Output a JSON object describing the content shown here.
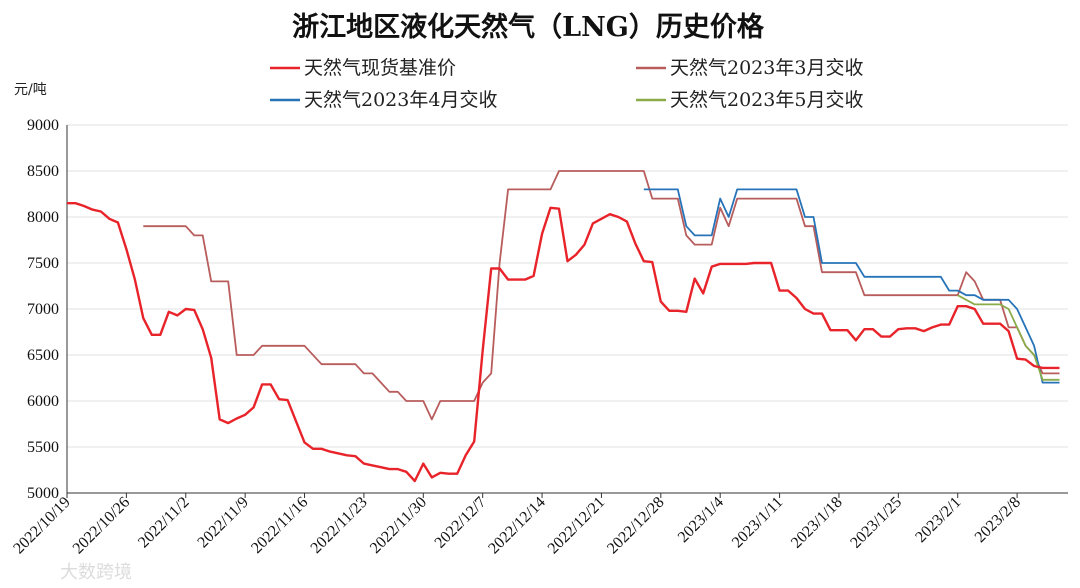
{
  "chart_data": {
    "type": "line",
    "title": "浙江地区液化天然气（LNG）历史价格",
    "ylabel": "元/吨",
    "xlabel": "",
    "ylim": [
      5000,
      9000
    ],
    "yticks": [
      5000,
      5500,
      6000,
      6500,
      7000,
      7500,
      8000,
      8500,
      9000
    ],
    "x_range": [
      "2022/10/19",
      "2023/2/14"
    ],
    "xticks": [
      "2022/10/19",
      "2022/10/26",
      "2022/11/2",
      "2022/11/9",
      "2022/11/16",
      "2022/11/23",
      "2022/11/30",
      "2022/12/7",
      "2022/12/14",
      "2022/12/21",
      "2022/12/28",
      "2023/1/4",
      "2023/1/11",
      "2023/1/18",
      "2023/1/25",
      "2023/2/1",
      "2023/2/8"
    ],
    "grid": "horizontal",
    "legend_position": "top",
    "series": [
      {
        "name": "天然气现货基准价",
        "color": "#e8232a",
        "points": [
          [
            "2022/10/19",
            8150
          ],
          [
            "2022/10/20",
            8150
          ],
          [
            "2022/10/21",
            8120
          ],
          [
            "2022/10/22",
            8080
          ],
          [
            "2022/10/23",
            8060
          ],
          [
            "2022/10/24",
            7980
          ],
          [
            "2022/10/25",
            7940
          ],
          [
            "2022/10/26",
            7650
          ],
          [
            "2022/10/27",
            7320
          ],
          [
            "2022/10/28",
            6900
          ],
          [
            "2022/10/29",
            6720
          ],
          [
            "2022/10/30",
            6720
          ],
          [
            "2022/10/31",
            6970
          ],
          [
            "2022/11/1",
            6930
          ],
          [
            "2022/11/2",
            7000
          ],
          [
            "2022/11/3",
            6990
          ],
          [
            "2022/11/4",
            6780
          ],
          [
            "2022/11/5",
            6470
          ],
          [
            "2022/11/6",
            5800
          ],
          [
            "2022/11/7",
            5760
          ],
          [
            "2022/11/8",
            5810
          ],
          [
            "2022/11/9",
            5850
          ],
          [
            "2022/11/10",
            5930
          ],
          [
            "2022/11/11",
            6180
          ],
          [
            "2022/11/12",
            6180
          ],
          [
            "2022/11/13",
            6020
          ],
          [
            "2022/11/14",
            6010
          ],
          [
            "2022/11/15",
            5780
          ],
          [
            "2022/11/16",
            5550
          ],
          [
            "2022/11/17",
            5480
          ],
          [
            "2022/11/18",
            5480
          ],
          [
            "2022/11/19",
            5450
          ],
          [
            "2022/11/20",
            5430
          ],
          [
            "2022/11/21",
            5410
          ],
          [
            "2022/11/22",
            5400
          ],
          [
            "2022/11/23",
            5320
          ],
          [
            "2022/11/24",
            5300
          ],
          [
            "2022/11/25",
            5280
          ],
          [
            "2022/11/26",
            5260
          ],
          [
            "2022/11/27",
            5260
          ],
          [
            "2022/11/28",
            5230
          ],
          [
            "2022/11/29",
            5130
          ],
          [
            "2022/11/30",
            5320
          ],
          [
            "2022/12/1",
            5170
          ],
          [
            "2022/12/2",
            5220
          ],
          [
            "2022/12/3",
            5210
          ],
          [
            "2022/12/4",
            5210
          ],
          [
            "2022/12/5",
            5410
          ],
          [
            "2022/12/6",
            5560
          ],
          [
            "2022/12/7",
            6550
          ],
          [
            "2022/12/8",
            7440
          ],
          [
            "2022/12/9",
            7440
          ],
          [
            "2022/12/10",
            7320
          ],
          [
            "2022/12/11",
            7320
          ],
          [
            "2022/12/12",
            7320
          ],
          [
            "2022/12/13",
            7360
          ],
          [
            "2022/12/14",
            7820
          ],
          [
            "2022/12/15",
            8100
          ],
          [
            "2022/12/16",
            8090
          ],
          [
            "2022/12/17",
            7520
          ],
          [
            "2022/12/18",
            7590
          ],
          [
            "2022/12/19",
            7700
          ],
          [
            "2022/12/20",
            7930
          ],
          [
            "2022/12/21",
            7980
          ],
          [
            "2022/12/22",
            8030
          ],
          [
            "2022/12/23",
            8000
          ],
          [
            "2022/12/24",
            7950
          ],
          [
            "2022/12/25",
            7710
          ],
          [
            "2022/12/26",
            7520
          ],
          [
            "2022/12/27",
            7510
          ],
          [
            "2022/12/28",
            7080
          ],
          [
            "2022/12/29",
            6980
          ],
          [
            "2022/12/30",
            6980
          ],
          [
            "2022/12/31",
            6970
          ],
          [
            "2023/1/1",
            7330
          ],
          [
            "2023/1/2",
            7170
          ],
          [
            "2023/1/3",
            7460
          ],
          [
            "2023/1/4",
            7490
          ],
          [
            "2023/1/5",
            7490
          ],
          [
            "2023/1/6",
            7490
          ],
          [
            "2023/1/7",
            7490
          ],
          [
            "2023/1/8",
            7500
          ],
          [
            "2023/1/9",
            7500
          ],
          [
            "2023/1/10",
            7500
          ],
          [
            "2023/1/11",
            7200
          ],
          [
            "2023/1/12",
            7200
          ],
          [
            "2023/1/13",
            7120
          ],
          [
            "2023/1/14",
            7000
          ],
          [
            "2023/1/15",
            6950
          ],
          [
            "2023/1/16",
            6950
          ],
          [
            "2023/1/17",
            6770
          ],
          [
            "2023/1/18",
            6770
          ],
          [
            "2023/1/19",
            6770
          ],
          [
            "2023/1/20",
            6660
          ],
          [
            "2023/1/21",
            6780
          ],
          [
            "2023/1/22",
            6780
          ],
          [
            "2023/1/23",
            6700
          ],
          [
            "2023/1/24",
            6700
          ],
          [
            "2023/1/25",
            6780
          ],
          [
            "2023/1/26",
            6790
          ],
          [
            "2023/1/27",
            6790
          ],
          [
            "2023/1/28",
            6760
          ],
          [
            "2023/1/29",
            6800
          ],
          [
            "2023/1/30",
            6830
          ],
          [
            "2023/1/31",
            6830
          ],
          [
            "2023/2/1",
            7030
          ],
          [
            "2023/2/2",
            7030
          ],
          [
            "2023/2/3",
            7000
          ],
          [
            "2023/2/4",
            6840
          ],
          [
            "2023/2/5",
            6840
          ],
          [
            "2023/2/6",
            6840
          ],
          [
            "2023/2/7",
            6760
          ],
          [
            "2023/2/8",
            6460
          ],
          [
            "2023/2/9",
            6450
          ],
          [
            "2023/2/10",
            6380
          ],
          [
            "2023/2/11",
            6360
          ],
          [
            "2023/2/12",
            6360
          ],
          [
            "2023/2/13",
            6360
          ]
        ]
      },
      {
        "name": "天然气2023年3月交收",
        "color": "#b85c5c",
        "points": [
          [
            "2022/10/28",
            7900
          ],
          [
            "2022/11/2",
            7900
          ],
          [
            "2022/11/3",
            7800
          ],
          [
            "2022/11/4",
            7800
          ],
          [
            "2022/11/5",
            7300
          ],
          [
            "2022/11/7",
            7300
          ],
          [
            "2022/11/8",
            6500
          ],
          [
            "2022/11/10",
            6500
          ],
          [
            "2022/11/11",
            6600
          ],
          [
            "2022/11/16",
            6600
          ],
          [
            "2022/11/18",
            6400
          ],
          [
            "2022/11/22",
            6400
          ],
          [
            "2022/11/23",
            6300
          ],
          [
            "2022/11/24",
            6300
          ],
          [
            "2022/11/26",
            6100
          ],
          [
            "2022/11/27",
            6100
          ],
          [
            "2022/11/28",
            6000
          ],
          [
            "2022/11/30",
            6000
          ],
          [
            "2022/12/1",
            5800
          ],
          [
            "2022/12/2",
            6000
          ],
          [
            "2022/12/6",
            6000
          ],
          [
            "2022/12/7",
            6200
          ],
          [
            "2022/12/8",
            6300
          ],
          [
            "2022/12/9",
            7500
          ],
          [
            "2022/12/10",
            8300
          ],
          [
            "2022/12/15",
            8300
          ],
          [
            "2022/12/16",
            8500
          ],
          [
            "2022/12/26",
            8500
          ],
          [
            "2022/12/27",
            8200
          ],
          [
            "2022/12/30",
            8200
          ],
          [
            "2022/12/31",
            7800
          ],
          [
            "2023/1/1",
            7700
          ],
          [
            "2023/1/3",
            7700
          ],
          [
            "2023/1/4",
            8100
          ],
          [
            "2023/1/5",
            7900
          ],
          [
            "2023/1/6",
            8200
          ],
          [
            "2023/1/13",
            8200
          ],
          [
            "2023/1/14",
            7900
          ],
          [
            "2023/1/15",
            7900
          ],
          [
            "2023/1/16",
            7400
          ],
          [
            "2023/1/20",
            7400
          ],
          [
            "2023/1/21",
            7150
          ],
          [
            "2023/2/1",
            7150
          ],
          [
            "2023/2/2",
            7400
          ],
          [
            "2023/2/3",
            7300
          ],
          [
            "2023/2/4",
            7100
          ],
          [
            "2023/2/6",
            7100
          ],
          [
            "2023/2/7",
            6800
          ],
          [
            "2023/2/8",
            6800
          ],
          [
            "2023/2/9",
            6600
          ],
          [
            "2023/2/10",
            6500
          ],
          [
            "2023/2/11",
            6300
          ],
          [
            "2023/2/13",
            6300
          ]
        ]
      },
      {
        "name": "天然气2023年4月交收",
        "color": "#2673b8",
        "points": [
          [
            "2022/12/26",
            8300
          ],
          [
            "2022/12/30",
            8300
          ],
          [
            "2022/12/31",
            7900
          ],
          [
            "2023/1/1",
            7800
          ],
          [
            "2023/1/3",
            7800
          ],
          [
            "2023/1/4",
            8200
          ],
          [
            "2023/1/5",
            8000
          ],
          [
            "2023/1/6",
            8300
          ],
          [
            "2023/1/13",
            8300
          ],
          [
            "2023/1/14",
            8000
          ],
          [
            "2023/1/15",
            8000
          ],
          [
            "2023/1/16",
            7500
          ],
          [
            "2023/1/20",
            7500
          ],
          [
            "2023/1/21",
            7350
          ],
          [
            "2023/1/30",
            7350
          ],
          [
            "2023/1/31",
            7200
          ],
          [
            "2023/2/1",
            7200
          ],
          [
            "2023/2/2",
            7150
          ],
          [
            "2023/2/3",
            7150
          ],
          [
            "2023/2/4",
            7100
          ],
          [
            "2023/2/7",
            7100
          ],
          [
            "2023/2/8",
            7000
          ],
          [
            "2023/2/9",
            6800
          ],
          [
            "2023/2/10",
            6600
          ],
          [
            "2023/2/11",
            6200
          ],
          [
            "2023/2/13",
            6200
          ]
        ]
      },
      {
        "name": "天然气2023年5月交收",
        "color": "#8aab4a",
        "points": [
          [
            "2023/2/1",
            7150
          ],
          [
            "2023/2/2",
            7100
          ],
          [
            "2023/2/3",
            7050
          ],
          [
            "2023/2/6",
            7050
          ],
          [
            "2023/2/7",
            7000
          ],
          [
            "2023/2/8",
            6800
          ],
          [
            "2023/2/9",
            6600
          ],
          [
            "2023/2/10",
            6500
          ],
          [
            "2023/2/11",
            6230
          ],
          [
            "2023/2/13",
            6230
          ]
        ]
      }
    ]
  },
  "watermark": "大数跨境"
}
